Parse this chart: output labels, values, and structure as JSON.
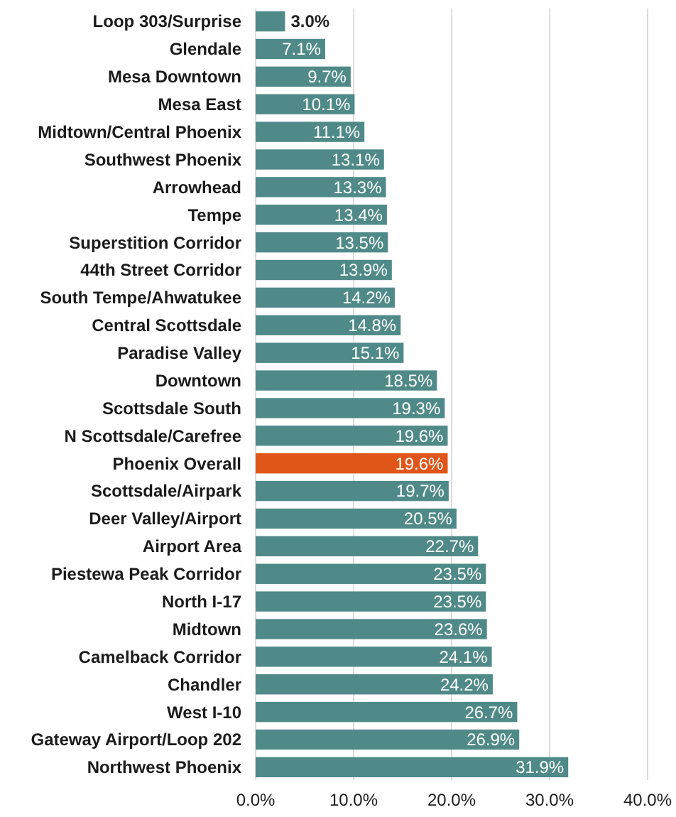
{
  "chart_data": {
    "type": "bar",
    "orientation": "horizontal",
    "categories": [
      "Loop 303/Surprise",
      "Glendale",
      "Mesa Downtown",
      "Mesa East",
      "Midtown/Central Phoenix",
      "Southwest Phoenix",
      "Arrowhead",
      "Tempe",
      "Superstition Corridor",
      "44th Street Corridor",
      "South Tempe/Ahwatukee",
      "Central Scottsdale",
      "Paradise Valley",
      "Downtown",
      "Scottsdale South",
      "N Scottsdale/Carefree",
      "Phoenix Overall",
      "Scottsdale/Airpark",
      "Deer Valley/Airport",
      "Airport Area",
      "Piestewa Peak Corridor",
      "North I-17",
      "Midtown",
      "Camelback Corridor",
      "Chandler",
      "West I-10",
      "Gateway Airport/Loop 202",
      "Northwest Phoenix"
    ],
    "values": [
      3.0,
      7.1,
      9.7,
      10.1,
      11.1,
      13.1,
      13.3,
      13.4,
      13.5,
      13.9,
      14.2,
      14.8,
      15.1,
      18.5,
      19.3,
      19.6,
      19.6,
      19.7,
      20.5,
      22.7,
      23.5,
      23.5,
      23.6,
      24.1,
      24.2,
      26.7,
      26.9,
      31.9
    ],
    "value_labels": [
      "3.0%",
      "7.1%",
      "9.7%",
      "10.1%",
      "11.1%",
      "13.1%",
      "13.3%",
      "13.4%",
      "13.5%",
      "13.9%",
      "14.2%",
      "14.8%",
      "15.1%",
      "18.5%",
      "19.3%",
      "19.6%",
      "19.6%",
      "19.7%",
      "20.5%",
      "22.7%",
      "23.5%",
      "23.5%",
      "23.6%",
      "24.1%",
      "24.2%",
      "26.7%",
      "26.9%",
      "31.9%"
    ],
    "colors": [
      "#4f8a88",
      "#4f8a88",
      "#4f8a88",
      "#4f8a88",
      "#4f8a88",
      "#4f8a88",
      "#4f8a88",
      "#4f8a88",
      "#4f8a88",
      "#4f8a88",
      "#4f8a88",
      "#4f8a88",
      "#4f8a88",
      "#4f8a88",
      "#4f8a88",
      "#4f8a88",
      "#e0561a",
      "#4f8a88",
      "#4f8a88",
      "#4f8a88",
      "#4f8a88",
      "#4f8a88",
      "#4f8a88",
      "#4f8a88",
      "#4f8a88",
      "#4f8a88",
      "#4f8a88",
      "#4f8a88"
    ],
    "xlim": [
      0,
      40
    ],
    "xticks": [
      {
        "value": 0,
        "label": "0.0%"
      },
      {
        "value": 10,
        "label": "10.0%"
      },
      {
        "value": 20,
        "label": "20.0%"
      },
      {
        "value": 30,
        "label": "30.0%"
      },
      {
        "value": 40,
        "label": "40.0%"
      }
    ],
    "grid": "x"
  }
}
